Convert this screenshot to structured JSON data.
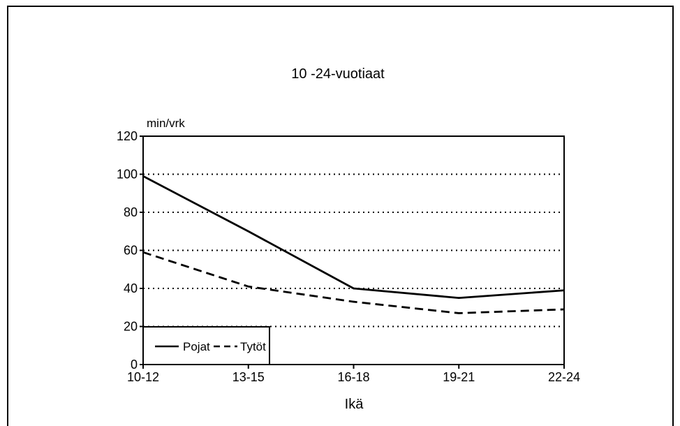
{
  "chart_data": {
    "type": "line",
    "title": "10 -24-vuotiaat",
    "ylabel": "min/vrk",
    "xlabel": "Ikä",
    "categories": [
      "10-12",
      "13-15",
      "16-18",
      "19-21",
      "22-24"
    ],
    "ylim": [
      0,
      120
    ],
    "yticks": [
      0,
      20,
      40,
      60,
      80,
      100,
      120
    ],
    "grid": "horizontal dotted",
    "legend_position": "bottom-left",
    "series": [
      {
        "name": "Pojat",
        "style": "solid",
        "values": [
          99,
          70,
          40,
          35,
          39
        ]
      },
      {
        "name": "Tytöt",
        "style": "dashed",
        "values": [
          59,
          41,
          33,
          27,
          29
        ]
      }
    ]
  }
}
